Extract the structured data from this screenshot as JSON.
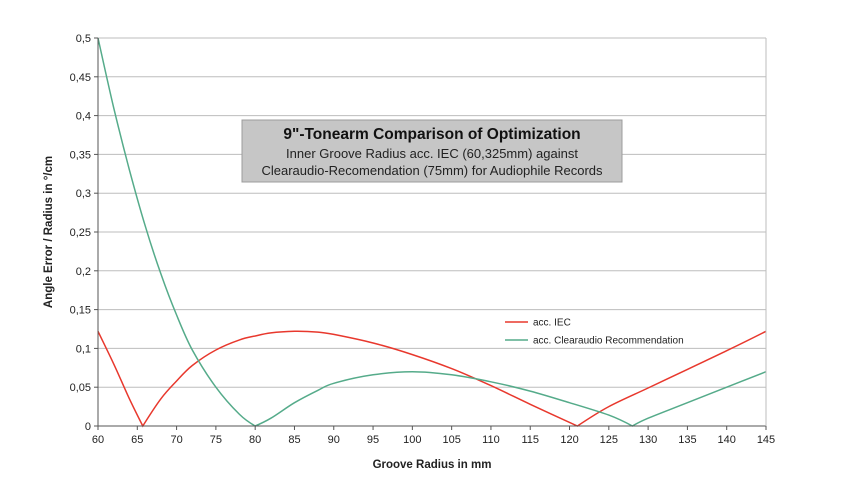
{
  "chart_data": {
    "type": "line",
    "title": "9\"-Tonearm Comparison of Optimization",
    "subtitle": [
      "Inner Groove Radius acc. IEC (60,325mm) against",
      "Clearaudio-Recomendation (75mm) for Audiophile Records"
    ],
    "xlabel": "Groove Radius in mm",
    "ylabel": "Angle Error / Radius in °/cm",
    "xlim": [
      60,
      145
    ],
    "ylim": [
      0,
      0.5
    ],
    "x_ticks": [
      "60",
      "65",
      "70",
      "75",
      "80",
      "85",
      "90",
      "95",
      "100",
      "105",
      "110",
      "115",
      "120",
      "125",
      "130",
      "135",
      "140",
      "145"
    ],
    "y_ticks": [
      "0",
      "0,05",
      "0,1",
      "0,15",
      "0,2",
      "0,25",
      "0,3",
      "0,35",
      "0,4",
      "0,45",
      "0,5"
    ],
    "grid": "horizontal",
    "legend_position": "right",
    "series": [
      {
        "name": "acc. IEC",
        "color": "#e8382d",
        "x": [
          60,
          62,
          64,
          65.7,
          68,
          70,
          72,
          75,
          78,
          80,
          82,
          85,
          88,
          90,
          95,
          100,
          105,
          110,
          115,
          121,
          125,
          130,
          135,
          140,
          145
        ],
        "y": [
          0.122,
          0.08,
          0.035,
          0.0,
          0.035,
          0.058,
          0.078,
          0.098,
          0.111,
          0.116,
          0.12,
          0.122,
          0.121,
          0.118,
          0.107,
          0.092,
          0.074,
          0.052,
          0.028,
          0.0,
          0.025,
          0.049,
          0.073,
          0.097,
          0.122
        ]
      },
      {
        "name": "acc. Clearaudio Recommendation",
        "color": "#55ab8a",
        "x": [
          60,
          62,
          64,
          66,
          68,
          70,
          72,
          75,
          78,
          80,
          82,
          85,
          88,
          90,
          95,
          100,
          105,
          110,
          115,
          120,
          125,
          128,
          130,
          135,
          140,
          145
        ],
        "y": [
          0.5,
          0.41,
          0.33,
          0.258,
          0.196,
          0.143,
          0.098,
          0.05,
          0.015,
          0.0,
          0.01,
          0.03,
          0.046,
          0.055,
          0.066,
          0.07,
          0.066,
          0.057,
          0.045,
          0.03,
          0.014,
          0.0,
          0.01,
          0.03,
          0.05,
          0.07
        ]
      }
    ]
  }
}
